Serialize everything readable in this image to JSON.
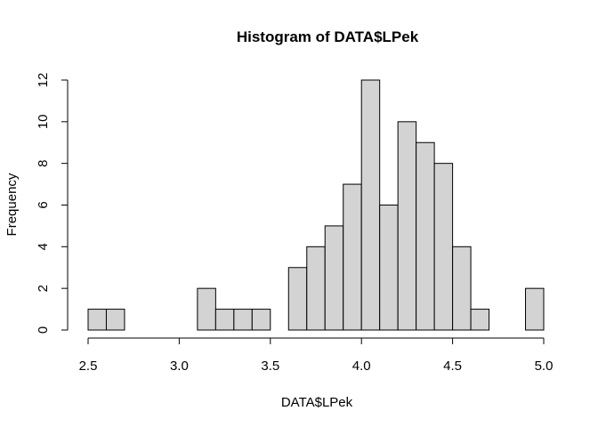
{
  "chart_data": {
    "type": "bar",
    "title": "Histogram of DATA$LPek",
    "xlabel": "DATA$LPek",
    "ylabel": "Frequency",
    "bin_width": 0.1,
    "bins": [
      {
        "start": 2.5,
        "end": 2.6,
        "count": 1
      },
      {
        "start": 2.6,
        "end": 2.7,
        "count": 1
      },
      {
        "start": 2.7,
        "end": 2.8,
        "count": 0
      },
      {
        "start": 2.8,
        "end": 2.9,
        "count": 0
      },
      {
        "start": 2.9,
        "end": 3.0,
        "count": 0
      },
      {
        "start": 3.0,
        "end": 3.1,
        "count": 0
      },
      {
        "start": 3.1,
        "end": 3.2,
        "count": 2
      },
      {
        "start": 3.2,
        "end": 3.3,
        "count": 1
      },
      {
        "start": 3.3,
        "end": 3.4,
        "count": 1
      },
      {
        "start": 3.4,
        "end": 3.5,
        "count": 1
      },
      {
        "start": 3.5,
        "end": 3.6,
        "count": 0
      },
      {
        "start": 3.6,
        "end": 3.7,
        "count": 3
      },
      {
        "start": 3.7,
        "end": 3.8,
        "count": 4
      },
      {
        "start": 3.8,
        "end": 3.9,
        "count": 5
      },
      {
        "start": 3.9,
        "end": 4.0,
        "count": 7
      },
      {
        "start": 4.0,
        "end": 4.1,
        "count": 12
      },
      {
        "start": 4.1,
        "end": 4.2,
        "count": 6
      },
      {
        "start": 4.2,
        "end": 4.3,
        "count": 10
      },
      {
        "start": 4.3,
        "end": 4.4,
        "count": 9
      },
      {
        "start": 4.4,
        "end": 4.5,
        "count": 8
      },
      {
        "start": 4.5,
        "end": 4.6,
        "count": 4
      },
      {
        "start": 4.6,
        "end": 4.7,
        "count": 1
      },
      {
        "start": 4.7,
        "end": 4.8,
        "count": 0
      },
      {
        "start": 4.8,
        "end": 4.9,
        "count": 0
      },
      {
        "start": 4.9,
        "end": 5.0,
        "count": 2
      }
    ],
    "xlim": [
      2.5,
      5.0
    ],
    "ylim": [
      0,
      12
    ],
    "x_ticks": [
      "2.5",
      "3.0",
      "3.5",
      "4.0",
      "4.5",
      "5.0"
    ],
    "y_ticks": [
      "0",
      "2",
      "4",
      "6",
      "8",
      "10",
      "12"
    ],
    "grid": false,
    "bar_color": "#d3d3d3",
    "border_color": "#000000"
  }
}
